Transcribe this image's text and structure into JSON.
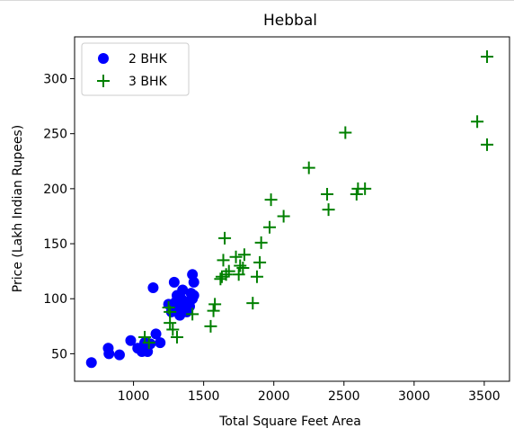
{
  "chart_data": {
    "type": "scatter",
    "title": "Hebbal",
    "xlabel": "Total Square Feet Area",
    "ylabel": "Price (Lakh Indian Rupees)",
    "xlim": [
      580,
      3680
    ],
    "ylim": [
      25,
      338
    ],
    "xticks": [
      1000,
      1500,
      2000,
      2500,
      3000,
      3500
    ],
    "yticks": [
      50,
      100,
      150,
      200,
      250,
      300
    ],
    "xtick_labels": [
      "1000",
      "1500",
      "2000",
      "2500",
      "3000",
      "3500"
    ],
    "ytick_labels": [
      "50",
      "100",
      "150",
      "200",
      "250",
      "300"
    ],
    "grid": false,
    "legend_position": "top-left",
    "series": [
      {
        "name": "2 BHK",
        "color": "#0000ff",
        "marker": "circle",
        "points": [
          [
            700,
            42
          ],
          [
            820,
            55
          ],
          [
            825,
            50
          ],
          [
            900,
            49
          ],
          [
            980,
            62
          ],
          [
            1030,
            55
          ],
          [
            1060,
            52
          ],
          [
            1080,
            60
          ],
          [
            1100,
            52
          ],
          [
            1120,
            59
          ],
          [
            1140,
            110
          ],
          [
            1160,
            68
          ],
          [
            1190,
            60
          ],
          [
            1250,
            95
          ],
          [
            1270,
            88
          ],
          [
            1290,
            115
          ],
          [
            1300,
            97
          ],
          [
            1310,
            103
          ],
          [
            1320,
            92
          ],
          [
            1330,
            85
          ],
          [
            1340,
            100
          ],
          [
            1350,
            108
          ],
          [
            1360,
            90
          ],
          [
            1370,
            95
          ],
          [
            1380,
            88
          ],
          [
            1390,
            96
          ],
          [
            1400,
            98
          ],
          [
            1410,
            105
          ],
          [
            1420,
            100
          ],
          [
            1420,
            122
          ],
          [
            1430,
            115
          ],
          [
            1430,
            103
          ],
          [
            1400,
            93
          ]
        ]
      },
      {
        "name": "3 BHK",
        "color": "#008000",
        "marker": "plus",
        "points": [
          [
            1080,
            65
          ],
          [
            1110,
            60
          ],
          [
            1250,
            92
          ],
          [
            1260,
            88
          ],
          [
            1260,
            78
          ],
          [
            1280,
            72
          ],
          [
            1310,
            65
          ],
          [
            1420,
            86
          ],
          [
            1550,
            75
          ],
          [
            1570,
            89
          ],
          [
            1580,
            95
          ],
          [
            1620,
            118
          ],
          [
            1630,
            120
          ],
          [
            1640,
            135
          ],
          [
            1650,
            155
          ],
          [
            1660,
            122
          ],
          [
            1680,
            125
          ],
          [
            1730,
            138
          ],
          [
            1750,
            122
          ],
          [
            1760,
            130
          ],
          [
            1780,
            128
          ],
          [
            1790,
            140
          ],
          [
            1850,
            96
          ],
          [
            1880,
            120
          ],
          [
            1900,
            133
          ],
          [
            1910,
            151
          ],
          [
            1970,
            165
          ],
          [
            1980,
            190
          ],
          [
            2070,
            175
          ],
          [
            2250,
            219
          ],
          [
            2380,
            195
          ],
          [
            2390,
            181
          ],
          [
            2510,
            251
          ],
          [
            2590,
            195
          ],
          [
            2600,
            200
          ],
          [
            2650,
            200
          ],
          [
            3450,
            261
          ],
          [
            3520,
            240
          ],
          [
            3520,
            320
          ]
        ]
      }
    ]
  }
}
